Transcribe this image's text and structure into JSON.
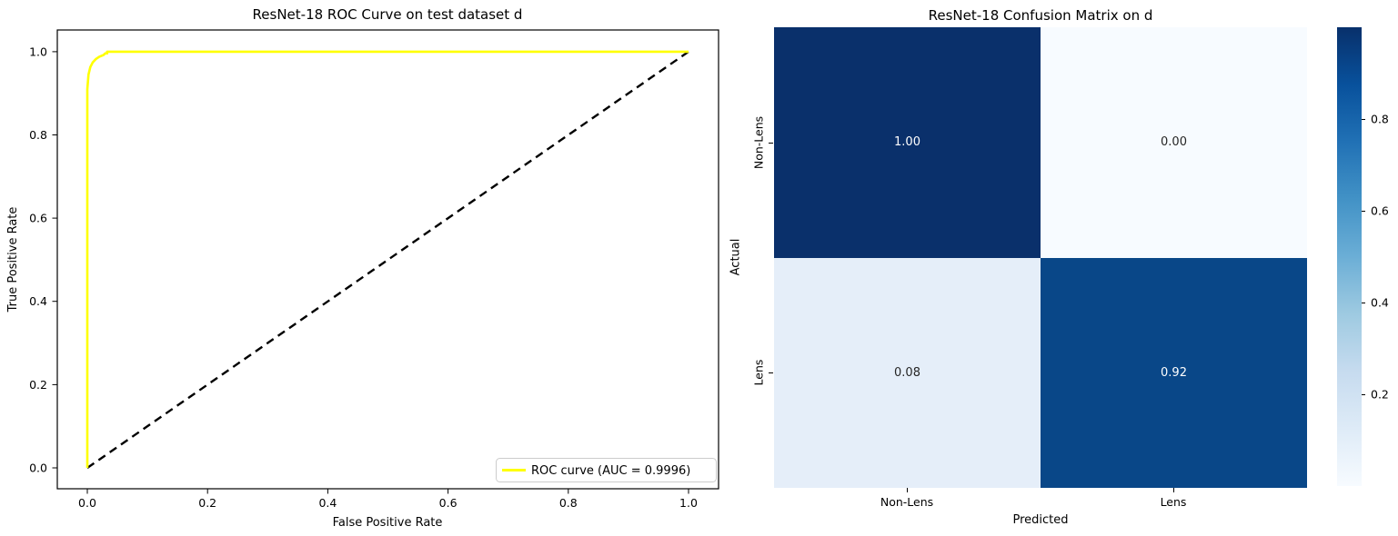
{
  "figure": {
    "background": "#ffffff"
  },
  "chart_data": [
    {
      "type": "line",
      "title": "ResNet-18 ROC Curve on test dataset d",
      "xlabel": "False Positive Rate",
      "ylabel": "True Positive Rate",
      "xlim": [
        -0.05,
        1.05
      ],
      "ylim": [
        -0.05,
        1.05
      ],
      "x_ticks": [
        "0.0",
        "0.2",
        "0.4",
        "0.6",
        "0.8",
        "1.0"
      ],
      "y_ticks": [
        "0.0",
        "0.2",
        "0.4",
        "0.6",
        "0.8",
        "1.0"
      ],
      "grid": false,
      "auc": 0.9996,
      "legend": {
        "position": "lower right",
        "entries": [
          "ROC curve (AUC = 0.9996)"
        ]
      },
      "series": [
        {
          "name": "ROC curve",
          "color": "#ffff00",
          "style": "solid",
          "points": [
            [
              0,
              0
            ],
            [
              0.0,
              0.91
            ],
            [
              0.002,
              0.945
            ],
            [
              0.005,
              0.963
            ],
            [
              0.009,
              0.974
            ],
            [
              0.014,
              0.982
            ],
            [
              0.02,
              0.988
            ],
            [
              0.027,
              0.992
            ],
            [
              0.03,
              0.996
            ],
            [
              0.033,
              0.996
            ],
            [
              0.033,
              1.0
            ],
            [
              1.0,
              1.0
            ]
          ]
        },
        {
          "name": "chance diagonal",
          "color": "#000000",
          "style": "dashed",
          "points": [
            [
              0,
              0
            ],
            [
              1,
              1
            ]
          ]
        }
      ]
    },
    {
      "type": "heatmap",
      "title": "ResNet-18 Confusion Matrix on d",
      "xlabel": "Predicted",
      "ylabel": "Actual",
      "x_categories": [
        "Non-Lens",
        "Lens"
      ],
      "y_categories": [
        "Non-Lens",
        "Lens"
      ],
      "values": [
        [
          1.0,
          0.0
        ],
        [
          0.08,
          0.92
        ]
      ],
      "cell_labels": [
        [
          "1.00",
          "0.00"
        ],
        [
          "0.08",
          "0.92"
        ]
      ],
      "cell_colors": [
        [
          "#0a306b",
          "#f7fbff"
        ],
        [
          "#e5eef9",
          "#094788"
        ]
      ],
      "cell_text_colors": [
        [
          "#ffffff",
          "#262626"
        ],
        [
          "#262626",
          "#ffffff"
        ]
      ],
      "colormap": "Blues",
      "colorbar": {
        "range": [
          0,
          1
        ],
        "ticks": [
          "0.8",
          "0.6",
          "0.4",
          "0.2"
        ],
        "tick_values": [
          0.8,
          0.6,
          0.4,
          0.2
        ],
        "gradient_top_to_bottom": [
          "#08306b",
          "#08519c",
          "#2171b5",
          "#4292c6",
          "#6baed6",
          "#9ecae1",
          "#c6dbef",
          "#deebf7",
          "#f7fbff"
        ]
      }
    }
  ]
}
